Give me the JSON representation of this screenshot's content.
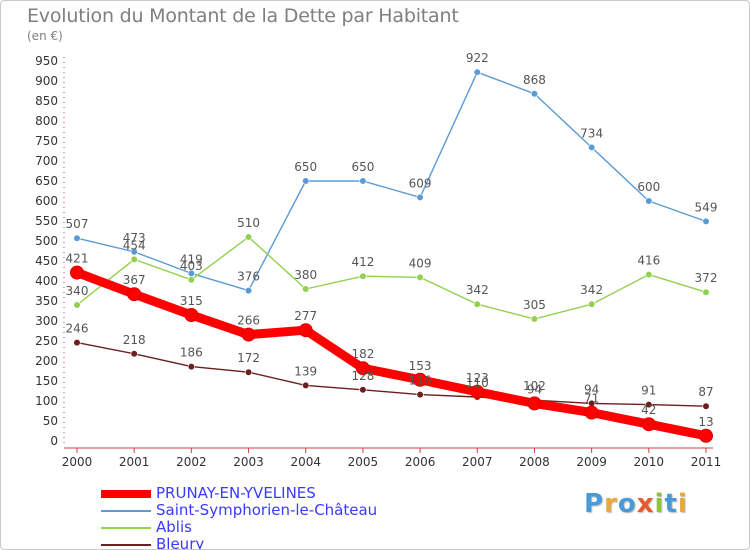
{
  "title": "Evolution du Montant de la Dette par Habitant",
  "unit": "(en €)",
  "logo": {
    "letters": [
      {
        "ch": "P",
        "color": "#4a9ad8"
      },
      {
        "ch": "r",
        "color": "#e8a83c"
      },
      {
        "ch": "o",
        "color": "#4a9ad8"
      },
      {
        "ch": "x",
        "color": "#e85a2c"
      },
      {
        "ch": "i",
        "color": "#8fc33a"
      },
      {
        "ch": "t",
        "color": "#4a9ad8"
      },
      {
        "ch": "i",
        "color": "#e8a83c"
      }
    ]
  },
  "chart_data": {
    "type": "line",
    "x": [
      "2000",
      "2001",
      "2002",
      "2003",
      "2004",
      "2005",
      "2006",
      "2007",
      "2008",
      "2009",
      "2010",
      "2011"
    ],
    "ylim": [
      0,
      950
    ],
    "yticks": [
      0,
      50,
      100,
      150,
      200,
      250,
      300,
      350,
      400,
      450,
      500,
      550,
      600,
      650,
      700,
      750,
      800,
      850,
      900,
      950
    ],
    "grid": false,
    "legend_position": "bottom",
    "series": [
      {
        "name": "Saint-Symphorien-le-Château",
        "color": "#5b9bd5",
        "values": [
          507,
          473,
          419,
          376,
          650,
          650,
          609,
          922,
          868,
          734,
          600,
          549
        ]
      },
      {
        "name": "Ablis",
        "color": "#92d050",
        "values": [
          340,
          454,
          403,
          510,
          380,
          412,
          409,
          342,
          305,
          342,
          416,
          372
        ]
      },
      {
        "name": "Bleury",
        "color": "#6b1f1f",
        "values": [
          246,
          218,
          186,
          172,
          139,
          128,
          116,
          110,
          102,
          94,
          91,
          87
        ]
      },
      {
        "name": "PRUNAY-EN-YVELINES",
        "color": "#ff0000",
        "values": [
          421,
          367,
          315,
          266,
          277,
          182,
          153,
          123,
          94,
          71,
          42,
          13
        ]
      }
    ],
    "legend_order": [
      "PRUNAY-EN-YVELINES",
      "Saint-Symphorien-le-Château",
      "Ablis",
      "Bleury"
    ]
  }
}
